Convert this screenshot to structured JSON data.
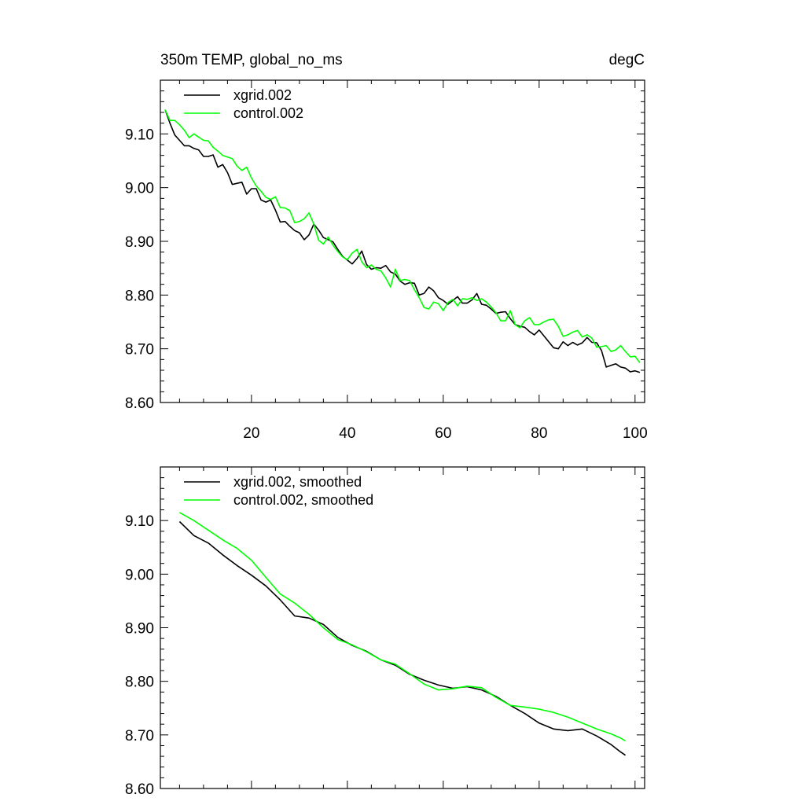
{
  "chart_data": [
    {
      "type": "line",
      "title_left": "350m TEMP, global_no_ms",
      "title_right": "degC",
      "xlim": [
        1,
        102
      ],
      "ylim": [
        8.6,
        9.2
      ],
      "xticks": [
        20,
        40,
        60,
        80,
        100
      ],
      "xtick_labels": [
        "20",
        "40",
        "60",
        "80",
        "100"
      ],
      "yticks": [
        8.6,
        8.7,
        8.8,
        8.9,
        9.0,
        9.1
      ],
      "ytick_labels": [
        "8.60",
        "8.70",
        "8.80",
        "8.90",
        "9.00",
        "9.10"
      ],
      "legend_placement": "top-left",
      "series": [
        {
          "name": "xgrid.002",
          "color": "#000000",
          "x": [
            2,
            3,
            4,
            5,
            6,
            7,
            8,
            9,
            10,
            11,
            12,
            13,
            14,
            15,
            16,
            17,
            18,
            19,
            20,
            21,
            22,
            23,
            24,
            25,
            26,
            27,
            28,
            29,
            30,
            31,
            32,
            33,
            34,
            35,
            36,
            37,
            38,
            39,
            40,
            41,
            42,
            43,
            44,
            45,
            46,
            47,
            48,
            49,
            50,
            51,
            52,
            53,
            54,
            55,
            56,
            57,
            58,
            59,
            60,
            61,
            62,
            63,
            64,
            65,
            66,
            67,
            68,
            69,
            70,
            71,
            72,
            73,
            74,
            75,
            76,
            77,
            78,
            79,
            80,
            81,
            82,
            83,
            84,
            85,
            86,
            87,
            88,
            89,
            90,
            91,
            92,
            93,
            94,
            95,
            96,
            97,
            98,
            99,
            100,
            101
          ],
          "y": [
            9.145,
            9.12,
            9.098,
            9.088,
            9.078,
            9.078,
            9.073,
            9.07,
            9.058,
            9.058,
            9.061,
            9.038,
            9.043,
            9.028,
            9.006,
            9.008,
            9.01,
            8.988,
            8.998,
            8.998,
            8.977,
            8.973,
            8.977,
            8.958,
            8.936,
            8.937,
            8.928,
            8.92,
            8.916,
            8.903,
            8.912,
            8.932,
            8.921,
            8.907,
            8.903,
            8.899,
            8.885,
            8.872,
            8.865,
            8.858,
            8.868,
            8.882,
            8.857,
            8.848,
            8.851,
            8.85,
            8.855,
            8.843,
            8.839,
            8.826,
            8.82,
            8.823,
            8.822,
            8.8,
            8.803,
            8.815,
            8.808,
            8.795,
            8.79,
            8.783,
            8.79,
            8.797,
            8.785,
            8.785,
            8.791,
            8.803,
            8.783,
            8.781,
            8.774,
            8.766,
            8.768,
            8.769,
            8.756,
            8.745,
            8.742,
            8.74,
            8.732,
            8.726,
            8.735,
            8.724,
            8.713,
            8.702,
            8.7,
            8.713,
            8.706,
            8.712,
            8.707,
            8.711,
            8.721,
            8.712,
            8.711,
            8.697,
            8.666,
            8.669,
            8.672,
            8.666,
            8.664,
            8.657,
            8.659,
            8.656
          ]
        },
        {
          "name": "control.002",
          "color": "#00ff00",
          "x": [
            2,
            3,
            4,
            5,
            6,
            7,
            8,
            9,
            10,
            11,
            12,
            13,
            14,
            15,
            16,
            17,
            18,
            19,
            20,
            21,
            22,
            23,
            24,
            25,
            26,
            27,
            28,
            29,
            30,
            31,
            32,
            33,
            34,
            35,
            36,
            37,
            38,
            39,
            40,
            41,
            42,
            43,
            44,
            45,
            46,
            47,
            48,
            49,
            50,
            51,
            52,
            53,
            54,
            55,
            56,
            57,
            58,
            59,
            60,
            61,
            62,
            63,
            64,
            65,
            66,
            67,
            68,
            69,
            70,
            71,
            72,
            73,
            74,
            75,
            76,
            77,
            78,
            79,
            80,
            81,
            82,
            83,
            84,
            85,
            86,
            87,
            88,
            89,
            90,
            91,
            92,
            93,
            94,
            95,
            96,
            97,
            98,
            99,
            100,
            101
          ],
          "y": [
            9.145,
            9.125,
            9.125,
            9.117,
            9.107,
            9.093,
            9.1,
            9.094,
            9.088,
            9.087,
            9.075,
            9.068,
            9.06,
            9.057,
            9.054,
            9.04,
            9.032,
            9.038,
            9.018,
            9.003,
            8.993,
            8.982,
            8.978,
            8.983,
            8.963,
            8.962,
            8.957,
            8.935,
            8.937,
            8.942,
            8.953,
            8.932,
            8.902,
            8.895,
            8.908,
            8.893,
            8.881,
            8.871,
            8.866,
            8.878,
            8.885,
            8.862,
            8.851,
            8.856,
            8.848,
            8.845,
            8.832,
            8.815,
            8.848,
            8.827,
            8.829,
            8.827,
            8.81,
            8.795,
            8.777,
            8.774,
            8.787,
            8.784,
            8.771,
            8.786,
            8.792,
            8.78,
            8.793,
            8.792,
            8.795,
            8.79,
            8.793,
            8.787,
            8.778,
            8.767,
            8.752,
            8.752,
            8.771,
            8.745,
            8.739,
            8.752,
            8.758,
            8.745,
            8.745,
            8.75,
            8.754,
            8.755,
            8.742,
            8.723,
            8.726,
            8.731,
            8.734,
            8.722,
            8.726,
            8.72,
            8.703,
            8.704,
            8.706,
            8.695,
            8.698,
            8.706,
            8.695,
            8.685,
            8.686,
            8.674
          ]
        }
      ]
    },
    {
      "type": "line",
      "xlim": [
        1,
        102
      ],
      "ylim": [
        8.6,
        9.2
      ],
      "xticks": [
        20,
        40,
        60,
        80,
        100
      ],
      "yticks": [
        8.6,
        8.7,
        8.8,
        8.9,
        9.0,
        9.1
      ],
      "ytick_labels": [
        "8.60",
        "8.70",
        "8.80",
        "8.90",
        "9.00",
        "9.10"
      ],
      "legend_placement": "top-left",
      "series": [
        {
          "name": "xgrid.002, smoothed",
          "color": "#000000",
          "x": [
            5,
            8,
            11,
            14,
            17,
            20,
            23,
            26,
            29,
            32,
            35,
            38,
            41,
            44,
            47,
            50,
            53,
            56,
            59,
            62,
            65,
            68,
            71,
            74,
            77,
            80,
            83,
            86,
            89,
            92,
            95,
            97,
            98
          ],
          "y": [
            9.098,
            9.072,
            9.058,
            9.036,
            9.016,
            8.998,
            8.978,
            8.952,
            8.922,
            8.918,
            8.906,
            8.882,
            8.867,
            8.856,
            8.84,
            8.83,
            8.813,
            8.802,
            8.793,
            8.787,
            8.79,
            8.784,
            8.772,
            8.755,
            8.74,
            8.722,
            8.711,
            8.708,
            8.711,
            8.698,
            8.682,
            8.668,
            8.662
          ]
        },
        {
          "name": "control.002, smoothed",
          "color": "#00ff00",
          "x": [
            5,
            8,
            11,
            14,
            17,
            20,
            23,
            26,
            29,
            32,
            35,
            38,
            41,
            44,
            47,
            50,
            53,
            56,
            59,
            62,
            65,
            68,
            71,
            74,
            77,
            80,
            83,
            86,
            89,
            92,
            95,
            97,
            98
          ],
          "y": [
            9.115,
            9.1,
            9.082,
            9.064,
            9.048,
            9.026,
            8.994,
            8.963,
            8.946,
            8.925,
            8.9,
            8.878,
            8.868,
            8.855,
            8.84,
            8.832,
            8.814,
            8.795,
            8.784,
            8.786,
            8.791,
            8.788,
            8.77,
            8.755,
            8.752,
            8.748,
            8.742,
            8.733,
            8.722,
            8.711,
            8.702,
            8.694,
            8.689
          ]
        }
      ]
    }
  ]
}
